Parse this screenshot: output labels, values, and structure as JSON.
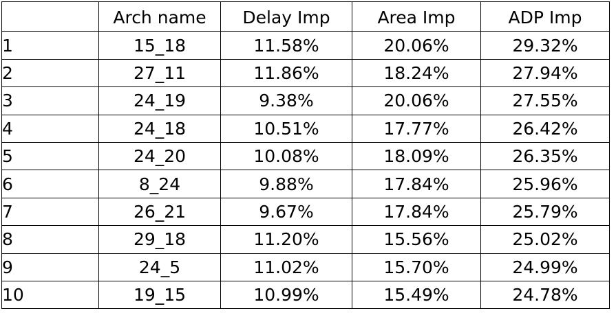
{
  "chart_data": {
    "type": "table",
    "columns": [
      "",
      "Arch name",
      "Delay Imp",
      "Area Imp",
      "ADP Imp"
    ],
    "rows": [
      [
        "1",
        "15_18",
        "11.58%",
        "20.06%",
        "29.32%"
      ],
      [
        "2",
        "27_11",
        "11.86%",
        "18.24%",
        "27.94%"
      ],
      [
        "3",
        "24_19",
        "9.38%",
        "20.06%",
        "27.55%"
      ],
      [
        "4",
        "24_18",
        "10.51%",
        "17.77%",
        "26.42%"
      ],
      [
        "5",
        "24_20",
        "10.08%",
        "18.09%",
        "26.35%"
      ],
      [
        "6",
        "8_24",
        "9.88%",
        "17.84%",
        "25.96%"
      ],
      [
        "7",
        "26_21",
        "9.67%",
        "17.84%",
        "25.79%"
      ],
      [
        "8",
        "29_18",
        "11.20%",
        "15.56%",
        "25.02%"
      ],
      [
        "9",
        "24_5",
        "11.02%",
        "15.70%",
        "24.99%"
      ],
      [
        "10",
        "19_15",
        "10.99%",
        "15.49%",
        "24.78%"
      ]
    ]
  },
  "colors": {
    "background": "#ffffff",
    "grid_lines": "#000000",
    "text": "#000000"
  }
}
